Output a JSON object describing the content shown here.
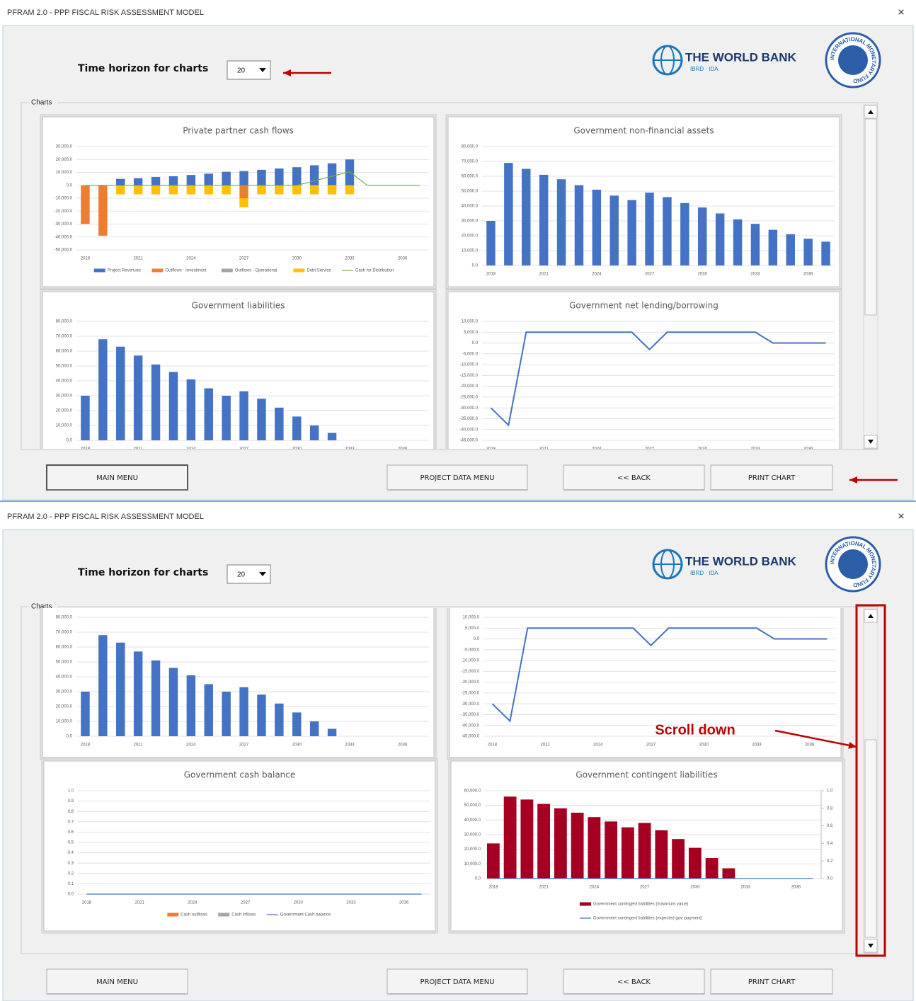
{
  "window": {
    "title": "PFRAM 2.0 - PPP FISCAL RISK ASSESSMENT MODEL",
    "close": "×",
    "time_horizon_label": "Time horizon for charts",
    "time_horizon": "20",
    "world_bank": "THE WORLD BANK",
    "world_bank_sub": "IBRD · IDA",
    "imf": "INTERNATIONAL MONETARY FUND",
    "group": "Charts",
    "buttons": [
      "MAIN MENU",
      "PROJECT DATA MENU",
      "<< BACK",
      "PRINT CHART"
    ]
  },
  "annotation": "Scroll down",
  "charts": [
    {
      "type": "bar",
      "title": "Private partner cash flows",
      "stacked": true,
      "grid": true,
      "categories": [
        "2018",
        null,
        null,
        "2021",
        null,
        null,
        "2024",
        null,
        null,
        "2027",
        null,
        null,
        "2030",
        null,
        null,
        "2033",
        null,
        null,
        "2036",
        null
      ],
      "series": [
        {
          "name": "Project Revenues",
          "color": "#4472c4",
          "values": [
            0,
            0,
            5000,
            5500,
            6500,
            7000,
            8000,
            9000,
            10500,
            11000,
            12000,
            13000,
            14000,
            15500,
            17000,
            20000,
            0,
            0,
            0,
            0
          ]
        },
        {
          "name": "Outflows - Investment",
          "color": "#ed7d31",
          "values": [
            -30000,
            -39000,
            0,
            0,
            0,
            0,
            0,
            0,
            0,
            -10000,
            0,
            0,
            0,
            0,
            0,
            0,
            0,
            0,
            0,
            0
          ]
        },
        {
          "name": "Outflows - Operational",
          "color": "#a5a5a5",
          "values": [
            0,
            0,
            0,
            0,
            0,
            0,
            0,
            0,
            0,
            0,
            0,
            0,
            0,
            0,
            0,
            0,
            0,
            0,
            0,
            0
          ]
        },
        {
          "name": "Debt Service",
          "color": "#ffc000",
          "values": [
            0,
            0,
            -7000,
            -7000,
            -7000,
            -7000,
            -7000,
            -7000,
            -7000,
            -7000,
            -7000,
            -7000,
            -7000,
            -7000,
            -7000,
            -7000,
            0,
            0,
            0,
            0
          ]
        },
        {
          "name": "Cash for Distribution",
          "color": "#70ad47",
          "type": "line",
          "values": [
            0,
            0,
            0,
            0,
            0,
            0,
            0,
            0,
            0,
            0,
            0,
            0,
            0,
            3500,
            7000,
            10500,
            0,
            0,
            0,
            0
          ]
        }
      ],
      "ylim": [
        -50000,
        30000
      ],
      "yticks": [
        {
          "value": 30000,
          "label": "30,000.0"
        },
        {
          "value": 20000,
          "label": "20,000.0"
        },
        {
          "value": 10000,
          "label": "10,000.0"
        },
        {
          "value": 0,
          "label": "0.0"
        },
        {
          "value": -10000,
          "label": "-10,000.0"
        },
        {
          "value": -20000,
          "label": "-20,000.0"
        },
        {
          "value": -30000,
          "label": "-30,000.0"
        },
        {
          "value": -40000,
          "label": "-40,000.0"
        },
        {
          "value": -50000,
          "label": "-50,000.0"
        }
      ]
    },
    {
      "type": "bar",
      "title": "Government non-financial assets",
      "grid": true,
      "color": "#4472c4",
      "categories": [
        "2018",
        null,
        null,
        "2021",
        null,
        null,
        "2024",
        null,
        null,
        "2027",
        null,
        null,
        "2030",
        null,
        null,
        "2033",
        null,
        null,
        "2036",
        null
      ],
      "values": [
        30000,
        69000,
        65000,
        61000,
        58000,
        54000,
        51000,
        47000,
        44000,
        49000,
        46000,
        42000,
        39000,
        35000,
        31000,
        28000,
        24000,
        21000,
        18000,
        16000
      ],
      "ylim": [
        0,
        80000
      ],
      "yticks": [
        {
          "value": 0,
          "label": "0.0"
        },
        {
          "value": 10000,
          "label": "10,000.0"
        },
        {
          "value": 20000,
          "label": "20,000.0"
        },
        {
          "value": 30000,
          "label": "30,000.0"
        },
        {
          "value": 40000,
          "label": "40,000.0"
        },
        {
          "value": 50000,
          "label": "50,000.0"
        },
        {
          "value": 60000,
          "label": "60,000.0"
        },
        {
          "value": 70000,
          "label": "70,000.0"
        },
        {
          "value": 80000,
          "label": "80,000.0"
        }
      ]
    },
    {
      "type": "bar",
      "title": "Government liabilities",
      "grid": true,
      "color": "#4472c4",
      "categories": [
        "2018",
        null,
        null,
        "2021",
        null,
        null,
        "2024",
        null,
        null,
        "2027",
        null,
        null,
        "2030",
        null,
        null,
        "2033",
        null,
        null,
        "2036",
        null
      ],
      "values": [
        30000,
        68000,
        63000,
        57000,
        51000,
        46000,
        41000,
        35000,
        30000,
        33000,
        28000,
        22000,
        16000,
        10000,
        5000,
        0,
        0,
        0,
        0,
        0
      ],
      "ylim": [
        0,
        80000
      ],
      "yticks": [
        {
          "value": 0,
          "label": "0.0"
        },
        {
          "value": 10000,
          "label": "10,000.0"
        },
        {
          "value": 20000,
          "label": "20,000.0"
        },
        {
          "value": 30000,
          "label": "30,000.0"
        },
        {
          "value": 40000,
          "label": "40,000.0"
        },
        {
          "value": 50000,
          "label": "50,000.0"
        },
        {
          "value": 60000,
          "label": "60,000.0"
        },
        {
          "value": 70000,
          "label": "70,000.0"
        },
        {
          "value": 80000,
          "label": "80,000.0"
        }
      ]
    },
    {
      "type": "line",
      "title": "Government net lending/borrowing",
      "grid": true,
      "color": "#4472c4",
      "categories": [
        "2018",
        null,
        null,
        "2021",
        null,
        null,
        "2024",
        null,
        null,
        "2027",
        null,
        null,
        "2030",
        null,
        null,
        "2033",
        null,
        null,
        "2036",
        null
      ],
      "values": [
        -30000,
        -38000,
        5000,
        5000,
        5000,
        5000,
        5000,
        5000,
        5000,
        -3000,
        5000,
        5000,
        5000,
        5000,
        5000,
        5000,
        0,
        0,
        0,
        0
      ],
      "ylim": [
        -45000,
        10000
      ],
      "yticks": [
        {
          "value": 10000,
          "label": "10,000.0"
        },
        {
          "value": 5000,
          "label": "5,000.0"
        },
        {
          "value": 0,
          "label": "0.0"
        },
        {
          "value": -5000,
          "label": "-5,000.0"
        },
        {
          "value": -10000,
          "label": "-10,000.0"
        },
        {
          "value": -15000,
          "label": "-15,000.0"
        },
        {
          "value": -20000,
          "label": "-20,000.0"
        },
        {
          "value": -25000,
          "label": "-25,000.0"
        },
        {
          "value": -30000,
          "label": "-30,000.0"
        },
        {
          "value": -35000,
          "label": "-35,000.0"
        },
        {
          "value": -40000,
          "label": "-40,000.0"
        },
        {
          "value": -45000,
          "label": "-45,000.0"
        }
      ]
    },
    {
      "type": "bar",
      "title": "Government cash balance",
      "stacked": true,
      "grid": true,
      "categories": [
        "2018",
        null,
        null,
        "2021",
        null,
        null,
        "2024",
        null,
        null,
        "2027",
        null,
        null,
        "2030",
        null,
        null,
        "2033",
        null,
        null,
        "2036",
        null
      ],
      "series": [
        {
          "name": "Cash outflows",
          "color": "#ed7d31",
          "values": [
            0,
            0,
            0,
            0,
            0,
            0,
            0,
            0,
            0,
            0,
            0,
            0,
            0,
            0,
            0,
            0,
            0,
            0,
            0,
            0
          ]
        },
        {
          "name": "Cash inflows",
          "color": "#a5a5a5",
          "values": [
            0,
            0,
            0,
            0,
            0,
            0,
            0,
            0,
            0,
            0,
            0,
            0,
            0,
            0,
            0,
            0,
            0,
            0,
            0,
            0
          ]
        },
        {
          "name": "Government Cash balance",
          "color": "#4472c4",
          "type": "line",
          "values": [
            0,
            0,
            0,
            0,
            0,
            0,
            0,
            0,
            0,
            0,
            0,
            0,
            0,
            0,
            0,
            0,
            0,
            0,
            0,
            0
          ]
        }
      ],
      "ylim": [
        0,
        1
      ],
      "yticks": [
        {
          "value": 0,
          "label": "0.0"
        },
        {
          "value": 0.1,
          "label": "0.1"
        },
        {
          "value": 0.2,
          "label": "0.2"
        },
        {
          "value": 0.3,
          "label": "0.3"
        },
        {
          "value": 0.4,
          "label": "0.4"
        },
        {
          "value": 0.5,
          "label": "0.5"
        },
        {
          "value": 0.6,
          "label": "0.6"
        },
        {
          "value": 0.7,
          "label": "0.7"
        },
        {
          "value": 0.8,
          "label": "0.8"
        },
        {
          "value": 0.9,
          "label": "0.9"
        },
        {
          "value": 1,
          "label": "1.0"
        }
      ]
    },
    {
      "type": "bar",
      "title": "Government contingent liabilities",
      "grid": true,
      "categories": [
        "2018",
        null,
        null,
        "2021",
        null,
        null,
        "2024",
        null,
        null,
        "2027",
        null,
        null,
        "2030",
        null,
        null,
        "2033",
        null,
        null,
        "2036",
        null
      ],
      "series": [
        {
          "name": "Government contingent liabilities (maximum value)",
          "color": "#a50021",
          "values": [
            24000,
            56000,
            54000,
            51000,
            48000,
            45000,
            42000,
            39000,
            35000,
            38000,
            33000,
            27000,
            21000,
            14000,
            7000,
            0,
            0,
            0,
            0,
            0
          ]
        },
        {
          "name": "Government contingent liabilities (expected gov. payment)",
          "color": "#4472c4",
          "type": "line",
          "axis": "y2",
          "values": [
            0,
            0,
            0,
            0,
            0,
            0,
            0,
            0,
            0,
            0,
            0,
            0,
            0,
            0,
            0,
            0,
            0,
            0,
            0,
            0
          ]
        }
      ],
      "ylim": [
        0,
        60000
      ],
      "yticks": [
        {
          "value": 0,
          "label": "0.0"
        },
        {
          "value": 10000,
          "label": "10,000.0"
        },
        {
          "value": 20000,
          "label": "20,000.0"
        },
        {
          "value": 30000,
          "label": "30,000.0"
        },
        {
          "value": 40000,
          "label": "40,000.0"
        },
        {
          "value": 50000,
          "label": "50,000.0"
        },
        {
          "value": 60000,
          "label": "60,000.0"
        }
      ],
      "y2lim": [
        0,
        1
      ],
      "y2ticks": [
        {
          "value": 0,
          "label": "0.0"
        },
        {
          "value": 0.2,
          "label": "0.2"
        },
        {
          "value": 0.4,
          "label": "0.4"
        },
        {
          "value": 0.6,
          "label": "0.6"
        },
        {
          "value": 0.8,
          "label": "0.8"
        },
        {
          "value": 1,
          "label": "1.0"
        }
      ]
    }
  ]
}
